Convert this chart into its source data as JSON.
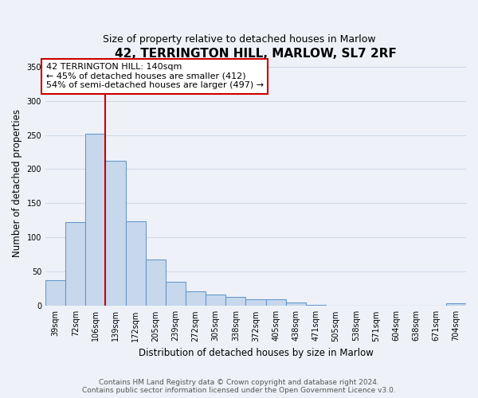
{
  "title": "42, TERRINGTON HILL, MARLOW, SL7 2RF",
  "subtitle": "Size of property relative to detached houses in Marlow",
  "xlabel": "Distribution of detached houses by size in Marlow",
  "ylabel": "Number of detached properties",
  "bar_labels": [
    "39sqm",
    "72sqm",
    "106sqm",
    "139sqm",
    "172sqm",
    "205sqm",
    "239sqm",
    "272sqm",
    "305sqm",
    "338sqm",
    "372sqm",
    "405sqm",
    "438sqm",
    "471sqm",
    "505sqm",
    "538sqm",
    "571sqm",
    "604sqm",
    "638sqm",
    "671sqm",
    "704sqm"
  ],
  "bar_values": [
    38,
    122,
    252,
    212,
    124,
    68,
    35,
    21,
    17,
    13,
    10,
    10,
    5,
    1,
    0,
    0,
    0,
    0,
    0,
    0,
    4
  ],
  "bar_color": "#c8d8ec",
  "bar_edge_color": "#6699cc",
  "vline_color": "#cc0000",
  "annotation_text": "42 TERRINGTON HILL: 140sqm\n← 45% of detached houses are smaller (412)\n54% of semi-detached houses are larger (497) →",
  "annotation_box_color": "white",
  "annotation_box_edge": "#cc0000",
  "ylim": [
    0,
    360
  ],
  "yticks": [
    0,
    50,
    100,
    150,
    200,
    250,
    300,
    350
  ],
  "footer_line1": "Contains HM Land Registry data © Crown copyright and database right 2024.",
  "footer_line2": "Contains public sector information licensed under the Open Government Licence v3.0.",
  "bg_color": "#eef2f8",
  "grid_color": "#d0d8e8",
  "title_fontsize": 11,
  "subtitle_fontsize": 9,
  "axis_label_fontsize": 8.5,
  "tick_fontsize": 7,
  "annotation_fontsize": 8,
  "footer_fontsize": 6.5
}
